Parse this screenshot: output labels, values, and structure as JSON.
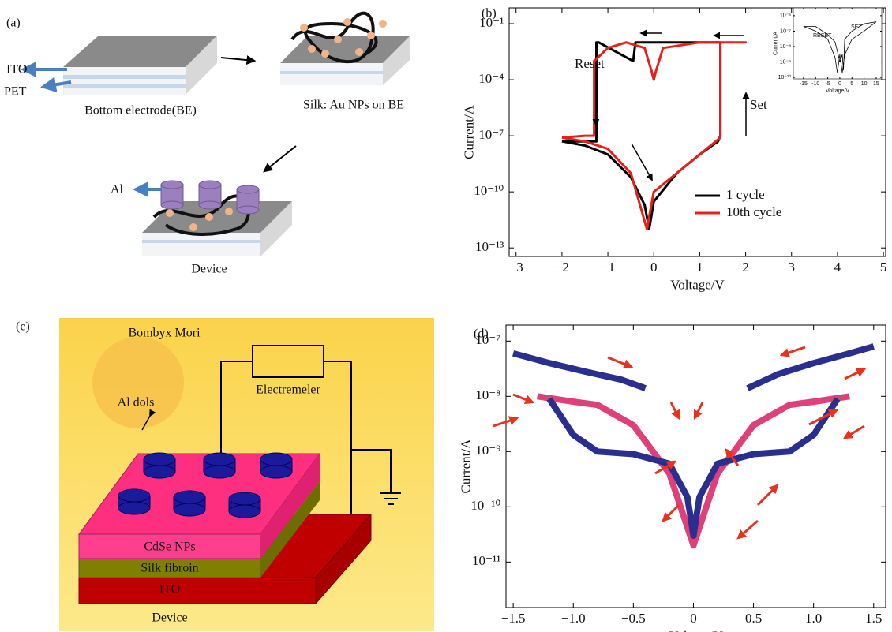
{
  "diagrams": {
    "a": {
      "label": "(a)",
      "ito": "ITO",
      "pet": "PET",
      "bottom_electrode": "Bottom electrode(BE)",
      "silk_layer": "Silk: Au NPs on BE",
      "al": "Al",
      "device": "Device"
    },
    "c": {
      "label": "(c)",
      "species": "Bombyx Mori",
      "electrode_box": "Electremeler",
      "al_dots": "Al dols",
      "cdse": "CdSe NPs",
      "silk": "Silk fibroin",
      "ito": "ITO",
      "device": "Device"
    }
  },
  "chart_data": [
    {
      "type": "line",
      "label": "(b)",
      "xlabel": "Voltage/V",
      "ylabel": "Current/A",
      "log_y": true,
      "xlim": [
        -3.15,
        5.05
      ],
      "ylim": [
        3.5e-14,
        0.7
      ],
      "xticks": [
        {
          "value": -3,
          "label": "−3"
        },
        {
          "value": -2,
          "label": "−2"
        },
        {
          "value": -1,
          "label": "−1"
        },
        0,
        1,
        2,
        3,
        4,
        5
      ],
      "yticks": [
        {
          "value": 0.1,
          "label": "10⁻¹"
        },
        {
          "value": 0.0001,
          "label": "10⁻⁴"
        },
        {
          "value": 1e-07,
          "label": "10⁻⁷"
        },
        {
          "value": 1e-10,
          "label": "10⁻¹⁰"
        },
        {
          "value": 1e-13,
          "label": "10⁻¹³"
        }
      ],
      "annotations": [
        "Reset",
        "Set"
      ],
      "legend": "lower right",
      "series": [
        {
          "name": "1 cycle",
          "color": "#000000",
          "x": [
            -2,
            -1.5,
            -1,
            -0.5,
            -0.2,
            -0.1,
            0,
            0.5,
            1,
            1.4,
            1.45,
            1.45,
            1,
            0.5,
            0,
            -0.4,
            -0.45,
            -1.2,
            -1.25,
            -1.25,
            -1.6,
            -2
          ],
          "values": [
            5e-08,
            3e-08,
            1e-08,
            6e-10,
            2e-11,
            1e-12,
            3e-11,
            1e-09,
            1e-08,
            5e-08,
            1e-07,
            0.01,
            0.01,
            0.01,
            0.01,
            0.01,
            0.001,
            0.01,
            0.01,
            5e-08,
            5e-08,
            5e-08
          ]
        },
        {
          "name": "10th cycle",
          "color": "#e8201a",
          "x": [
            -2,
            -1.5,
            -1,
            -0.5,
            -0.15,
            0,
            0.5,
            1,
            1.45,
            1.45,
            2,
            1,
            0.2,
            0.05,
            0,
            -0.05,
            -0.2,
            -0.6,
            -1,
            -1.3,
            -1.3,
            -1.5,
            -2
          ],
          "values": [
            8e-08,
            5e-08,
            2e-08,
            1e-09,
            1e-12,
            1e-10,
            1e-09,
            1e-08,
            8e-08,
            0.01,
            0.01,
            0.01,
            0.005,
            0.0003,
            0.0001,
            0.0003,
            0.005,
            0.01,
            0.005,
            0.001,
            1e-07,
            1e-07,
            8e-08
          ]
        }
      ]
    },
    {
      "type": "line",
      "xlabel": "Voltage/V",
      "ylabel": "Current/A",
      "log_y": true,
      "xlim": [
        -19.2,
        17.3
      ],
      "ylim": [
        8e-11,
        3.2e-06
      ],
      "xticks": [
        -15,
        -10,
        -5,
        0,
        5,
        10,
        15
      ],
      "yticks": [
        {
          "value": 1e-06,
          "label": "10⁻⁶"
        },
        {
          "value": 1e-07,
          "label": "10⁻⁷"
        },
        {
          "value": 1e-08,
          "label": "10⁻⁸"
        },
        {
          "value": 1e-09,
          "label": "10⁻⁹"
        },
        {
          "value": 1e-10,
          "label": "10⁻¹⁰"
        }
      ],
      "annotations": [
        "RESET",
        "SET"
      ],
      "series": [
        {
          "color": "#000000",
          "x": [
            -15,
            -10,
            -5,
            -2,
            -1,
            0,
            1,
            2,
            5,
            10,
            15,
            10,
            5,
            2,
            1.5,
            1,
            0,
            -1,
            -2,
            -5,
            -10,
            -15
          ],
          "values": [
            2e-07,
            1e-07,
            3e-08,
            2e-09,
            2e-10,
            3e-09,
            2e-10,
            3e-09,
            3e-08,
            1e-07,
            4e-07,
            3e-07,
            1e-07,
            3e-08,
            3e-10,
            3e-09,
            1e-09,
            5e-09,
            2e-08,
            6e-08,
            2e-07,
            2e-07
          ]
        }
      ]
    },
    {
      "type": "line",
      "label": "(d)",
      "xlabel": "Voltage/V",
      "ylabel": "Current/A",
      "log_y": true,
      "xlim": [
        -1.56,
        1.6
      ],
      "ylim": [
        1.5e-12,
        1.95e-07
      ],
      "xticks": [
        {
          "value": -1.5,
          "label": "−1.5"
        },
        {
          "value": -1,
          "label": "−1.0"
        },
        {
          "value": -0.5,
          "label": "−0.5"
        },
        0,
        0.5,
        {
          "value": 1,
          "label": "1.0"
        },
        1.5
      ],
      "yticks": [
        {
          "value": 1e-07,
          "label": "10⁻⁷"
        },
        {
          "value": 1e-08,
          "label": "10⁻⁸"
        },
        {
          "value": 1e-09,
          "label": "10⁻⁹"
        },
        {
          "value": 1e-10,
          "label": "10⁻¹⁰"
        },
        {
          "value": 1e-11,
          "label": "10⁻¹¹"
        }
      ],
      "series": [
        {
          "color": "#e0407a",
          "x": [
            -1.3,
            -1.0,
            -0.8,
            -0.5,
            -0.2,
            0,
            0.2,
            0.5,
            0.8,
            1.0,
            1.3
          ],
          "values": [
            1e-08,
            8e-09,
            7e-09,
            3e-09,
            4e-10,
            2e-11,
            4e-10,
            3e-09,
            7e-09,
            8e-09,
            1e-08
          ]
        },
        {
          "color": "#2a2f8f",
          "x": [
            -1.5,
            -1.2,
            -0.9,
            -0.6,
            -0.4
          ],
          "values": [
            6e-08,
            4e-08,
            2.8e-08,
            2e-08,
            1.4e-08
          ]
        },
        {
          "color": "#2a2f8f",
          "x": [
            0.45,
            0.7,
            1.0,
            1.3,
            1.5
          ],
          "values": [
            1.4e-08,
            2.5e-08,
            4e-08,
            6e-08,
            8e-08
          ]
        },
        {
          "color": "#2a2f8f",
          "x": [
            -1.2,
            -1.0,
            -0.8,
            -0.5,
            -0.2,
            -0.05,
            0,
            0.05,
            0.2,
            0.5,
            0.8,
            1.0,
            1.2
          ],
          "values": [
            9e-09,
            2e-09,
            1e-09,
            9e-10,
            6e-10,
            1.5e-10,
            3e-11,
            1.5e-10,
            6e-10,
            9e-10,
            1e-09,
            2e-09,
            9e-09
          ]
        }
      ]
    }
  ]
}
